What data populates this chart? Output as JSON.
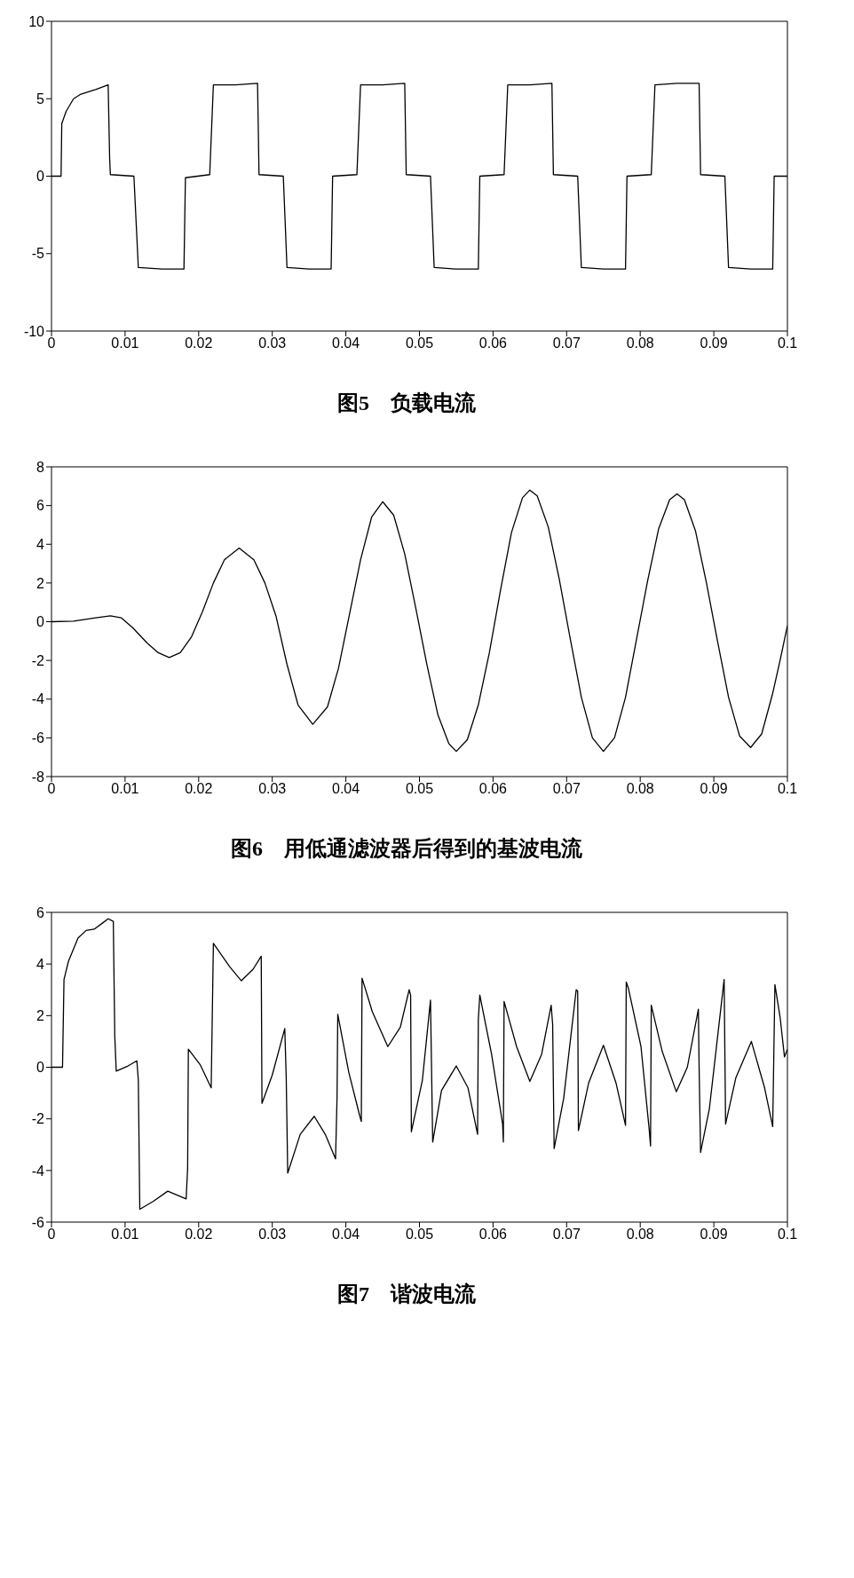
{
  "chart_data": [
    {
      "type": "line",
      "title": "图5　负载电流",
      "color": "#000000",
      "xlim": [
        0,
        0.1
      ],
      "ylim": [
        -10,
        10
      ],
      "xticks": [
        0,
        0.01,
        0.02,
        0.03,
        0.04,
        0.05,
        0.06,
        0.07,
        0.08,
        0.09,
        0.1
      ],
      "yticks": [
        -10,
        -5,
        0,
        5,
        10
      ],
      "grid": false,
      "x": [
        0,
        0.0013,
        0.0014,
        0.002,
        0.003,
        0.004,
        0.006,
        0.0077,
        0.0079,
        0.008,
        0.0112,
        0.0118,
        0.015,
        0.018,
        0.0182,
        0.0215,
        0.022,
        0.025,
        0.028,
        0.0282,
        0.0315,
        0.032,
        0.035,
        0.038,
        0.0382,
        0.0415,
        0.042,
        0.045,
        0.048,
        0.0482,
        0.0515,
        0.052,
        0.055,
        0.058,
        0.0582,
        0.0615,
        0.062,
        0.065,
        0.068,
        0.0682,
        0.0715,
        0.072,
        0.075,
        0.078,
        0.0782,
        0.0815,
        0.082,
        0.085,
        0.088,
        0.0882,
        0.0915,
        0.092,
        0.095,
        0.098,
        0.0982,
        0.1
      ],
      "values": [
        0,
        0,
        3.4,
        4.2,
        5.0,
        5.3,
        5.6,
        5.9,
        1.2,
        0.1,
        0,
        -5.9,
        -6,
        -6,
        -0.1,
        0.1,
        5.9,
        5.9,
        6,
        0.1,
        0,
        -5.9,
        -6,
        -6,
        0,
        0.1,
        5.9,
        5.9,
        6,
        0.1,
        0,
        -5.9,
        -6,
        -6,
        0,
        0.1,
        5.9,
        5.9,
        6,
        0.1,
        0,
        -5.9,
        -6,
        -6,
        0,
        0.1,
        5.9,
        6,
        6,
        0.1,
        0,
        -5.9,
        -6,
        -6,
        0,
        0
      ]
    },
    {
      "type": "line",
      "title": "图6　用低通滤波器后得到的基波电流",
      "color": "#000000",
      "xlim": [
        0,
        0.1
      ],
      "ylim": [
        -8,
        8
      ],
      "xticks": [
        0,
        0.01,
        0.02,
        0.03,
        0.04,
        0.05,
        0.06,
        0.07,
        0.08,
        0.09,
        0.1
      ],
      "yticks": [
        -8,
        -6,
        -4,
        -2,
        0,
        2,
        4,
        6,
        8
      ],
      "grid": false,
      "x": [
        0,
        0.003,
        0.006,
        0.008,
        0.0095,
        0.011,
        0.013,
        0.0145,
        0.016,
        0.0175,
        0.019,
        0.0205,
        0.022,
        0.0235,
        0.0255,
        0.0275,
        0.029,
        0.0305,
        0.032,
        0.0335,
        0.0355,
        0.0375,
        0.039,
        0.0405,
        0.042,
        0.0435,
        0.045,
        0.0465,
        0.048,
        0.0495,
        0.051,
        0.0525,
        0.054,
        0.055,
        0.0565,
        0.058,
        0.0595,
        0.061,
        0.0625,
        0.064,
        0.065,
        0.066,
        0.0675,
        0.069,
        0.0705,
        0.072,
        0.0735,
        0.075,
        0.0765,
        0.078,
        0.0795,
        0.081,
        0.0825,
        0.084,
        0.085,
        0.086,
        0.0875,
        0.089,
        0.0905,
        0.092,
        0.0935,
        0.095,
        0.0965,
        0.098,
        0.099,
        0.1
      ],
      "values": [
        0,
        0.03,
        0.2,
        0.3,
        0.2,
        -0.3,
        -1.1,
        -1.6,
        -1.85,
        -1.6,
        -0.8,
        0.5,
        2.0,
        3.2,
        3.8,
        3.2,
        2.0,
        0.3,
        -2.2,
        -4.3,
        -5.3,
        -4.4,
        -2.4,
        0.4,
        3.2,
        5.4,
        6.2,
        5.5,
        3.5,
        0.7,
        -2.2,
        -4.8,
        -6.3,
        -6.7,
        -6.1,
        -4.3,
        -1.6,
        1.6,
        4.6,
        6.4,
        6.8,
        6.5,
        4.9,
        2.2,
        -0.9,
        -3.9,
        -6.0,
        -6.7,
        -6.0,
        -3.9,
        -0.9,
        2.1,
        4.8,
        6.3,
        6.6,
        6.3,
        4.7,
        2.0,
        -1.0,
        -3.9,
        -5.9,
        -6.5,
        -5.8,
        -3.7,
        -2.0,
        -0.2
      ]
    },
    {
      "type": "line",
      "title": "图7　谐波电流",
      "color": "#000000",
      "xlim": [
        0,
        0.1
      ],
      "ylim": [
        -6,
        6
      ],
      "xticks": [
        0,
        0.01,
        0.02,
        0.03,
        0.04,
        0.05,
        0.06,
        0.07,
        0.08,
        0.09,
        0.1
      ],
      "yticks": [
        -6,
        -4,
        -2,
        0,
        2,
        4,
        6
      ],
      "grid": false,
      "x": [
        0,
        0.0015,
        0.0017,
        0.0023,
        0.0036,
        0.0047,
        0.0058,
        0.007,
        0.0077,
        0.0084,
        0.0086,
        0.0088,
        0.0104,
        0.0116,
        0.0118,
        0.012,
        0.0138,
        0.0158,
        0.0183,
        0.0185,
        0.0186,
        0.0202,
        0.0217,
        0.022,
        0.0242,
        0.0258,
        0.0274,
        0.0285,
        0.0286,
        0.03,
        0.0317,
        0.0319,
        0.0321,
        0.0338,
        0.0357,
        0.0372,
        0.0386,
        0.0388,
        0.0389,
        0.0404,
        0.0419,
        0.0421,
        0.0422,
        0.0436,
        0.0457,
        0.0474,
        0.0486,
        0.0488,
        0.0489,
        0.0504,
        0.0515,
        0.0518,
        0.053,
        0.055,
        0.0566,
        0.0579,
        0.058,
        0.0582,
        0.0598,
        0.0613,
        0.0614,
        0.0615,
        0.0632,
        0.065,
        0.0666,
        0.0679,
        0.0681,
        0.0683,
        0.0696,
        0.0713,
        0.0715,
        0.0716,
        0.073,
        0.075,
        0.0767,
        0.078,
        0.0781,
        0.0784,
        0.0801,
        0.0812,
        0.0814,
        0.0815,
        0.083,
        0.0849,
        0.0864,
        0.0879,
        0.088,
        0.0882,
        0.0894,
        0.0914,
        0.0916,
        0.093,
        0.0951,
        0.0969,
        0.098,
        0.0983,
        0.099,
        0.0996,
        0.1
      ],
      "values": [
        0,
        0,
        3.4,
        4.1,
        5.0,
        5.3,
        5.35,
        5.6,
        5.75,
        5.65,
        1.2,
        -0.15,
        0.05,
        0.25,
        -0.5,
        -5.5,
        -5.2,
        -4.8,
        -5.1,
        -3.9,
        0.7,
        0.1,
        -0.8,
        4.8,
        3.9,
        3.35,
        3.8,
        4.3,
        -1.4,
        -0.3,
        1.5,
        -0.45,
        -4.1,
        -2.6,
        -1.9,
        -2.6,
        -3.55,
        -1.2,
        2.05,
        -0.2,
        -1.9,
        -2.1,
        3.45,
        2.15,
        0.8,
        1.55,
        3.0,
        2.8,
        -2.5,
        -0.5,
        2.6,
        -2.9,
        -0.9,
        0.05,
        -0.8,
        -2.6,
        1.85,
        2.8,
        0.5,
        -2.2,
        -2.9,
        2.55,
        0.8,
        -0.55,
        0.5,
        2.4,
        1.65,
        -3.15,
        -1.2,
        3.0,
        2.95,
        -2.45,
        -0.6,
        0.85,
        -0.6,
        -2.25,
        3.3,
        3.05,
        0.8,
        -2.35,
        -3.05,
        2.4,
        0.6,
        -0.95,
        0.0,
        2.25,
        0,
        -3.3,
        -1.6,
        3.4,
        -2.2,
        -0.4,
        1.0,
        -0.8,
        -2.3,
        3.2,
        1.95,
        0.4,
        0.7
      ]
    }
  ]
}
